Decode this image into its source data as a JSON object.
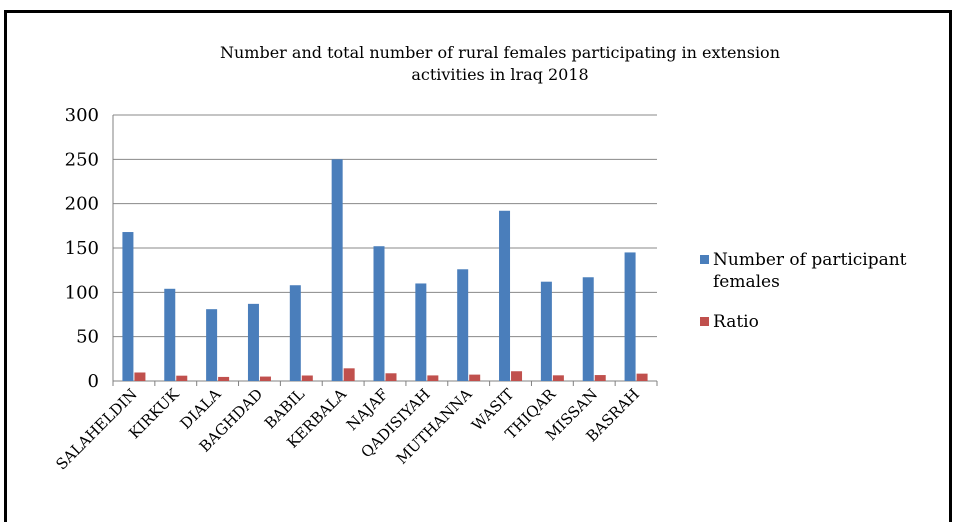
{
  "chart_data": {
    "type": "bar",
    "title_lines": [
      "Number and total number of rural females participating in extension",
      "activities in lraq 2018"
    ],
    "xlabel": "",
    "ylabel": "",
    "ylim": [
      0,
      300
    ],
    "yticks": [
      "300",
      "250",
      "200",
      "150",
      "100",
      "50",
      "0"
    ],
    "grid": true,
    "legend_position": "right",
    "categories": [
      "SALAHELDIN",
      "KIRKUK",
      "DIALA",
      "BAGHDAD",
      "BABIL",
      "KERBALA",
      "NAJAF",
      "QADISIYAH",
      "MUTHANNA",
      "WASIT",
      "THIQAR",
      "MISSAN",
      "BASRAH"
    ],
    "series": [
      {
        "name": "Number of participant females",
        "legend_lines": [
          "Number of participant",
          "females"
        ],
        "color": "#4A7EBB",
        "values": [
          168,
          104,
          81,
          87,
          108,
          250,
          152,
          110,
          126,
          192,
          112,
          117,
          145
        ]
      },
      {
        "name": "Ratio",
        "legend_lines": [
          "Ratio"
        ],
        "color": "#C0504D",
        "values": [
          9.6,
          6.0,
          4.6,
          5.0,
          6.2,
          14.3,
          8.7,
          6.3,
          7.2,
          11.0,
          6.4,
          6.7,
          8.3
        ]
      }
    ]
  }
}
